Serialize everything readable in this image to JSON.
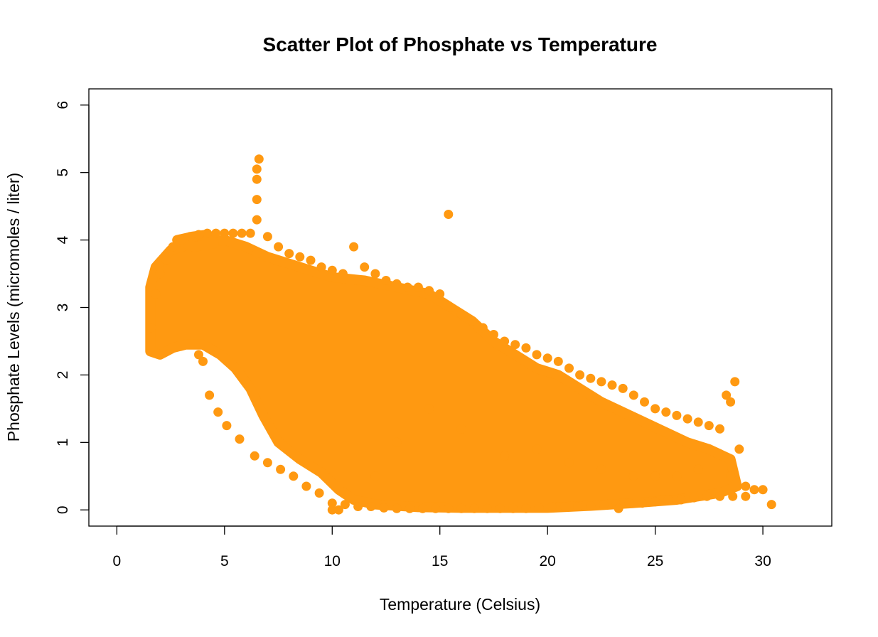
{
  "chart_data": {
    "type": "scatter",
    "title": "Scatter Plot of Phosphate vs Temperature",
    "xlabel": "Temperature (Celsius)",
    "ylabel": "Phosphate Levels (micromoles / liter)",
    "xlim": [
      -1.3,
      33.2
    ],
    "ylim": [
      -0.24,
      6.24
    ],
    "x_ticks": [
      0,
      5,
      10,
      15,
      20,
      25,
      30
    ],
    "y_ticks": [
      0,
      1,
      2,
      3,
      4,
      5,
      6
    ],
    "grid": false,
    "legend": "none",
    "point_color": "#FF9911",
    "series": [
      {
        "x": [
          1.6,
          1.8,
          2.0,
          2.3,
          2.6,
          3.0,
          3.4,
          3.8,
          4.2,
          4.6,
          5.0,
          5.4,
          5.8,
          6.2,
          6.5,
          6.5,
          6.5,
          6.5,
          6.6,
          6.5,
          7.0,
          7.5,
          8.0,
          8.5,
          9.0,
          9.5,
          10.0,
          10.5,
          11.0,
          11.5,
          12.0,
          12.5,
          13.0,
          13.5,
          14.0,
          14.5,
          15.0,
          15.4,
          15.5,
          16.0,
          16.5,
          17.0,
          17.5,
          18.0,
          18.5,
          19.0,
          19.5,
          20.0,
          20.5,
          21.0,
          21.5,
          22.0,
          22.5,
          23.0,
          23.5,
          24.0,
          24.5,
          25.0,
          25.5,
          26.0,
          26.5,
          27.0,
          27.5,
          28.0,
          28.3,
          28.5,
          28.7,
          28.9,
          29.2,
          29.6,
          30.0,
          30.4,
          3.8,
          4.0,
          4.3,
          4.7,
          5.1,
          5.7,
          6.4,
          7.0,
          7.6,
          8.2,
          8.8,
          9.4,
          10.0,
          10.6,
          11.2,
          11.8,
          12.4,
          13.0,
          13.6,
          14.2,
          14.8,
          15.4,
          16.0,
          16.6,
          17.2,
          17.8,
          18.4,
          19.0,
          19.6,
          20.2,
          20.8,
          21.4,
          22.0,
          22.6,
          23.2,
          23.8,
          24.4,
          25.0,
          25.6,
          26.2,
          26.8,
          27.4,
          28.0,
          28.6,
          29.2,
          10.0,
          10.3,
          12.0,
          13.0,
          14.5,
          16.0,
          18.0,
          19.5,
          21.0,
          22.5,
          23.3,
          24.0,
          25.0,
          26.0,
          27.0,
          28.5
        ],
        "y": [
          2.7,
          3.2,
          3.5,
          3.7,
          3.9,
          4.0,
          4.05,
          4.08,
          4.1,
          4.1,
          4.1,
          4.1,
          4.1,
          4.1,
          4.3,
          4.6,
          4.9,
          5.05,
          5.2,
          3.8,
          4.05,
          3.9,
          3.8,
          3.75,
          3.7,
          3.6,
          3.55,
          3.5,
          3.9,
          3.6,
          3.5,
          3.4,
          3.35,
          3.3,
          3.3,
          3.25,
          3.2,
          4.38,
          3.0,
          2.9,
          2.8,
          2.7,
          2.6,
          2.5,
          2.45,
          2.4,
          2.3,
          2.25,
          2.2,
          2.1,
          2.0,
          1.95,
          1.9,
          1.85,
          1.8,
          1.7,
          1.6,
          1.5,
          1.45,
          1.4,
          1.35,
          1.3,
          1.25,
          1.2,
          1.7,
          1.6,
          1.9,
          0.9,
          0.35,
          0.3,
          0.3,
          0.08,
          2.3,
          2.2,
          1.7,
          1.45,
          1.25,
          1.05,
          0.8,
          0.7,
          0.6,
          0.5,
          0.35,
          0.25,
          0.1,
          0.08,
          0.05,
          0.05,
          0.03,
          0.02,
          0.02,
          0.02,
          0.02,
          0.02,
          0.02,
          0.02,
          0.02,
          0.02,
          0.02,
          0.02,
          0.03,
          0.05,
          0.05,
          0.05,
          0.06,
          0.08,
          0.08,
          0.1,
          0.1,
          0.12,
          0.15,
          0.15,
          0.18,
          0.2,
          0.2,
          0.2,
          0.2,
          0.0,
          0.0,
          0.5,
          1.0,
          1.5,
          1.2,
          0.8,
          0.9,
          0.7,
          0.6,
          0.02,
          0.5,
          0.5,
          0.5,
          0.6,
          0.5
        ]
      }
    ]
  }
}
